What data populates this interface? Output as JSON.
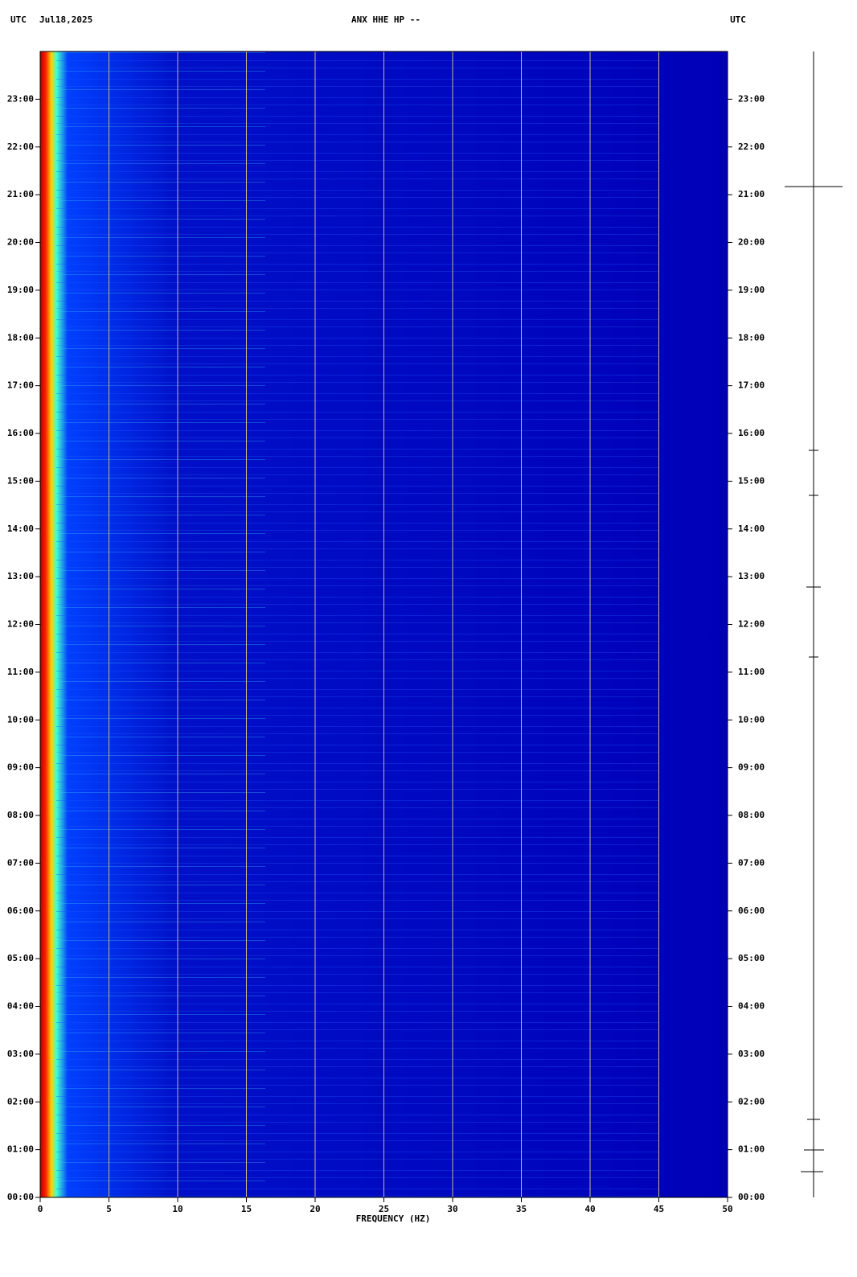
{
  "header": {
    "left_zone": "UTC",
    "date": "Jul18,2025",
    "station": "ANX HHE HP --",
    "right_zone": "UTC"
  },
  "chart_data": {
    "type": "spectrogram",
    "xlabel": "FREQUENCY (HZ)",
    "xlim": [
      0,
      50
    ],
    "xticks": [
      0,
      5,
      10,
      15,
      20,
      25,
      30,
      35,
      40,
      45,
      50
    ],
    "ylim": [
      0,
      24
    ],
    "yticks": [
      {
        "value": 0,
        "label": "00:00"
      },
      {
        "value": 1,
        "label": "01:00"
      },
      {
        "value": 2,
        "label": "02:00"
      },
      {
        "value": 3,
        "label": "03:00"
      },
      {
        "value": 4,
        "label": "04:00"
      },
      {
        "value": 5,
        "label": "05:00"
      },
      {
        "value": 6,
        "label": "06:00"
      },
      {
        "value": 7,
        "label": "07:00"
      },
      {
        "value": 8,
        "label": "08:00"
      },
      {
        "value": 9,
        "label": "09:00"
      },
      {
        "value": 10,
        "label": "10:00"
      },
      {
        "value": 11,
        "label": "11:00"
      },
      {
        "value": 12,
        "label": "12:00"
      },
      {
        "value": 13,
        "label": "13:00"
      },
      {
        "value": 14,
        "label": "14:00"
      },
      {
        "value": 15,
        "label": "15:00"
      },
      {
        "value": 16,
        "label": "16:00"
      },
      {
        "value": 17,
        "label": "17:00"
      },
      {
        "value": 18,
        "label": "18:00"
      },
      {
        "value": 19,
        "label": "19:00"
      },
      {
        "value": 20,
        "label": "20:00"
      },
      {
        "value": 21,
        "label": "21:00"
      },
      {
        "value": 22,
        "label": "22:00"
      },
      {
        "value": 23,
        "label": "23:00"
      }
    ],
    "grid": true,
    "grid_color": "#c8b48c",
    "colormap": [
      "#b00000",
      "#ff2000",
      "#ffd000",
      "#40ffd0",
      "#0040ff",
      "#0010c8",
      "#0000b8"
    ]
  }
}
